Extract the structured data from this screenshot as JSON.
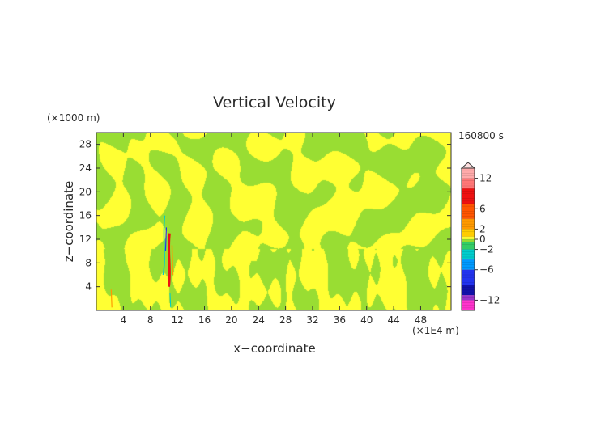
{
  "chart_data": {
    "type": "heatmap",
    "title": "Vertical Velocity",
    "xlabel": "x−coordinate",
    "ylabel": "z−coordinate",
    "x_unit": "(×1E4 m)",
    "y_unit": "(×1000 m)",
    "time_label": "160800 s",
    "xlim": [
      0,
      52.5
    ],
    "ylim": [
      0,
      30
    ],
    "x_ticks": [
      "4",
      "8",
      "12",
      "16",
      "20",
      "24",
      "28",
      "32",
      "36",
      "40",
      "44",
      "48"
    ],
    "y_ticks": [
      "4",
      "8",
      "12",
      "16",
      "20",
      "24",
      "28"
    ],
    "colorbar": {
      "min": -14,
      "max": 14,
      "tick_labels": [
        "12",
        "6",
        "2",
        "0",
        "−2",
        "−6",
        "−12"
      ],
      "tick_values": [
        12,
        6,
        2,
        0,
        -2,
        -6,
        -12
      ],
      "colors": {
        "neg_strong": "#ff33cc",
        "neg_purple": "#9933cc",
        "neg_blue": "#2233ee",
        "neg_cyan": "#00cccc",
        "near_zero_neg": "#99dd33",
        "near_zero_pos": "#ffff33",
        "pos_orange": "#ff9900",
        "pos_red": "#ee1111",
        "pos_strong": "#ffaaaa"
      }
    },
    "features": [
      {
        "x": 10.6,
        "z": 9,
        "value": 10
      },
      {
        "x": 9.9,
        "z": 11,
        "value": -6
      }
    ]
  }
}
